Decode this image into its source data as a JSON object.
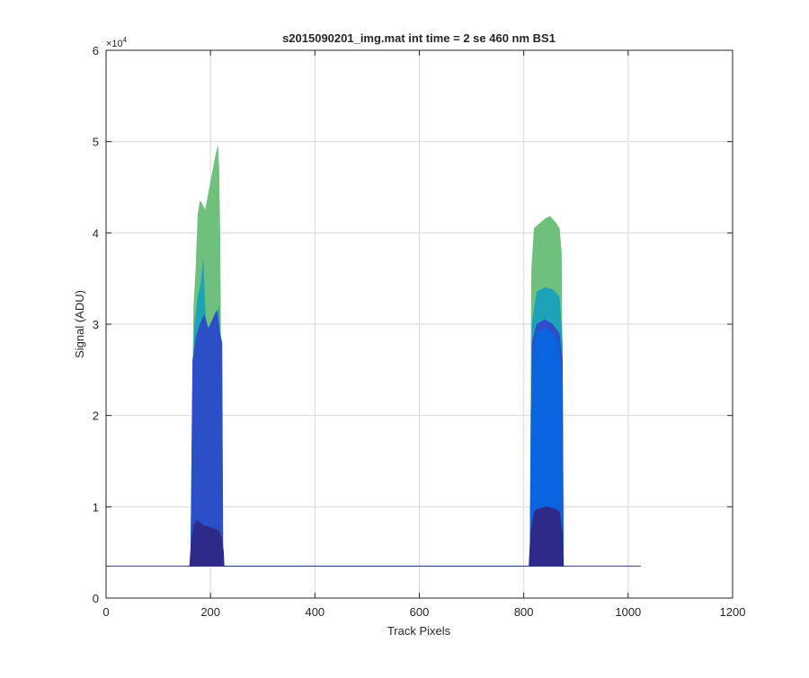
{
  "chart_data": {
    "type": "area",
    "title": "s2015090201_img.mat int time = 2 se  460 nm BS1",
    "xlabel": "Track Pixels",
    "ylabel": "Signal (ADU)",
    "y_exponent_label": "×10",
    "y_exponent_power": "4",
    "xlim": [
      0,
      1200
    ],
    "ylim": [
      0,
      60000
    ],
    "xticks": [
      0,
      200,
      400,
      600,
      800,
      1000,
      1200
    ],
    "xtick_labels": [
      "0",
      "200",
      "400",
      "600",
      "800",
      "1000",
      "1200"
    ],
    "yticks": [
      0,
      10000,
      20000,
      30000,
      40000,
      50000,
      60000
    ],
    "ytick_labels": [
      "0",
      "1",
      "2",
      "3",
      "4",
      "5",
      "6"
    ],
    "grid": true,
    "baseline": 3500,
    "baseline_x_range": [
      0,
      1024
    ],
    "series": [
      {
        "color": "#6fbf7d",
        "points": [
          [
            162,
            3500
          ],
          [
            165,
            20000
          ],
          [
            168,
            32000
          ],
          [
            172,
            36000
          ],
          [
            176,
            42000
          ],
          [
            180,
            43500
          ],
          [
            185,
            43000
          ],
          [
            190,
            42500
          ],
          [
            195,
            44000
          ],
          [
            200,
            45500
          ],
          [
            205,
            47000
          ],
          [
            210,
            48500
          ],
          [
            214,
            49500
          ],
          [
            216,
            47000
          ],
          [
            218,
            40000
          ],
          [
            220,
            25000
          ],
          [
            222,
            3500
          ],
          [
            812,
            3500
          ],
          [
            815,
            36000
          ],
          [
            820,
            40500
          ],
          [
            830,
            41000
          ],
          [
            840,
            41500
          ],
          [
            850,
            41800
          ],
          [
            860,
            41200
          ],
          [
            868,
            40500
          ],
          [
            872,
            38000
          ],
          [
            876,
            3500
          ]
        ]
      },
      {
        "color": "#1ca3b8",
        "points": [
          [
            162,
            3500
          ],
          [
            166,
            22000
          ],
          [
            170,
            30000
          ],
          [
            176,
            33000
          ],
          [
            182,
            34500
          ],
          [
            186,
            37000
          ],
          [
            190,
            31000
          ],
          [
            195,
            28000
          ],
          [
            200,
            27000
          ],
          [
            205,
            28500
          ],
          [
            210,
            30000
          ],
          [
            216,
            32000
          ],
          [
            219,
            26000
          ],
          [
            222,
            3500
          ],
          [
            812,
            3500
          ],
          [
            816,
            30000
          ],
          [
            825,
            33500
          ],
          [
            840,
            34000
          ],
          [
            855,
            33800
          ],
          [
            868,
            33000
          ],
          [
            874,
            28000
          ],
          [
            876,
            3500
          ]
        ]
      },
      {
        "color": "#2c4fc7",
        "points": [
          [
            162,
            3500
          ],
          [
            166,
            26000
          ],
          [
            172,
            28500
          ],
          [
            180,
            30000
          ],
          [
            188,
            31000
          ],
          [
            196,
            29500
          ],
          [
            204,
            30500
          ],
          [
            212,
            31500
          ],
          [
            218,
            29000
          ],
          [
            222,
            28000
          ],
          [
            224,
            3500
          ],
          [
            812,
            3500
          ],
          [
            816,
            28000
          ],
          [
            825,
            30000
          ],
          [
            840,
            30500
          ],
          [
            855,
            30000
          ],
          [
            868,
            29000
          ],
          [
            874,
            26000
          ],
          [
            876,
            3500
          ]
        ]
      },
      {
        "color": "#0a64e0",
        "points": [
          [
            812,
            3500
          ],
          [
            814,
            20000
          ],
          [
            818,
            27000
          ],
          [
            825,
            29000
          ],
          [
            840,
            29500
          ],
          [
            855,
            29000
          ],
          [
            866,
            28000
          ],
          [
            872,
            25000
          ],
          [
            875,
            3500
          ]
        ]
      },
      {
        "color": "#2d2a8a",
        "points": [
          [
            160,
            3500
          ],
          [
            163,
            6000
          ],
          [
            168,
            8000
          ],
          [
            175,
            8500
          ],
          [
            185,
            8000
          ],
          [
            195,
            7800
          ],
          [
            205,
            7600
          ],
          [
            215,
            7400
          ],
          [
            222,
            6500
          ],
          [
            225,
            5000
          ],
          [
            226,
            3500
          ],
          [
            810,
            3500
          ],
          [
            813,
            7000
          ],
          [
            820,
            9500
          ],
          [
            830,
            9800
          ],
          [
            845,
            10000
          ],
          [
            858,
            9800
          ],
          [
            868,
            9500
          ],
          [
            874,
            7000
          ],
          [
            876,
            3500
          ]
        ]
      }
    ]
  }
}
